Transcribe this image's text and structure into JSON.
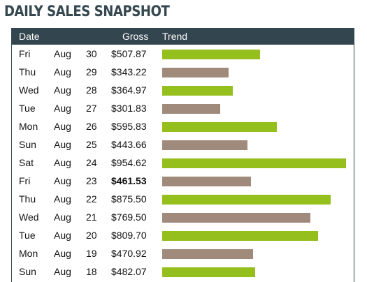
{
  "title": "DAILY SALES SNAPSHOT",
  "colors": {
    "header_bg": "#33454e",
    "bar_up": "#94bf1c",
    "bar_down": "#a08a7c"
  },
  "chart_data": {
    "type": "bar",
    "orientation": "horizontal",
    "columns": [
      "Date",
      "Gross",
      "Trend"
    ],
    "rows": [
      {
        "day": "Fri",
        "month": "Aug",
        "date": "30",
        "gross": "$507.87",
        "value": 507.87,
        "up": true,
        "highlight": false
      },
      {
        "day": "Thu",
        "month": "Aug",
        "date": "29",
        "gross": "$343.22",
        "value": 343.22,
        "up": false,
        "highlight": false
      },
      {
        "day": "Wed",
        "month": "Aug",
        "date": "28",
        "gross": "$364.97",
        "value": 364.97,
        "up": true,
        "highlight": false
      },
      {
        "day": "Tue",
        "month": "Aug",
        "date": "27",
        "gross": "$301.83",
        "value": 301.83,
        "up": false,
        "highlight": false
      },
      {
        "day": "Mon",
        "month": "Aug",
        "date": "26",
        "gross": "$595.83",
        "value": 595.83,
        "up": true,
        "highlight": false
      },
      {
        "day": "Sun",
        "month": "Aug",
        "date": "25",
        "gross": "$443.66",
        "value": 443.66,
        "up": false,
        "highlight": false
      },
      {
        "day": "Sat",
        "month": "Aug",
        "date": "24",
        "gross": "$954.62",
        "value": 954.62,
        "up": true,
        "highlight": false
      },
      {
        "day": "Fri",
        "month": "Aug",
        "date": "23",
        "gross": "$461.53",
        "value": 461.53,
        "up": false,
        "highlight": true
      },
      {
        "day": "Thu",
        "month": "Aug",
        "date": "22",
        "gross": "$875.50",
        "value": 875.5,
        "up": true,
        "highlight": false
      },
      {
        "day": "Wed",
        "month": "Aug",
        "date": "21",
        "gross": "$769.50",
        "value": 769.5,
        "up": false,
        "highlight": false
      },
      {
        "day": "Tue",
        "month": "Aug",
        "date": "20",
        "gross": "$809.70",
        "value": 809.7,
        "up": true,
        "highlight": false
      },
      {
        "day": "Mon",
        "month": "Aug",
        "date": "19",
        "gross": "$470.92",
        "value": 470.92,
        "up": false,
        "highlight": false
      },
      {
        "day": "Sun",
        "month": "Aug",
        "date": "18",
        "gross": "$482.07",
        "value": 482.07,
        "up": true,
        "highlight": false
      }
    ],
    "value_max": 954.62,
    "grid": false
  }
}
